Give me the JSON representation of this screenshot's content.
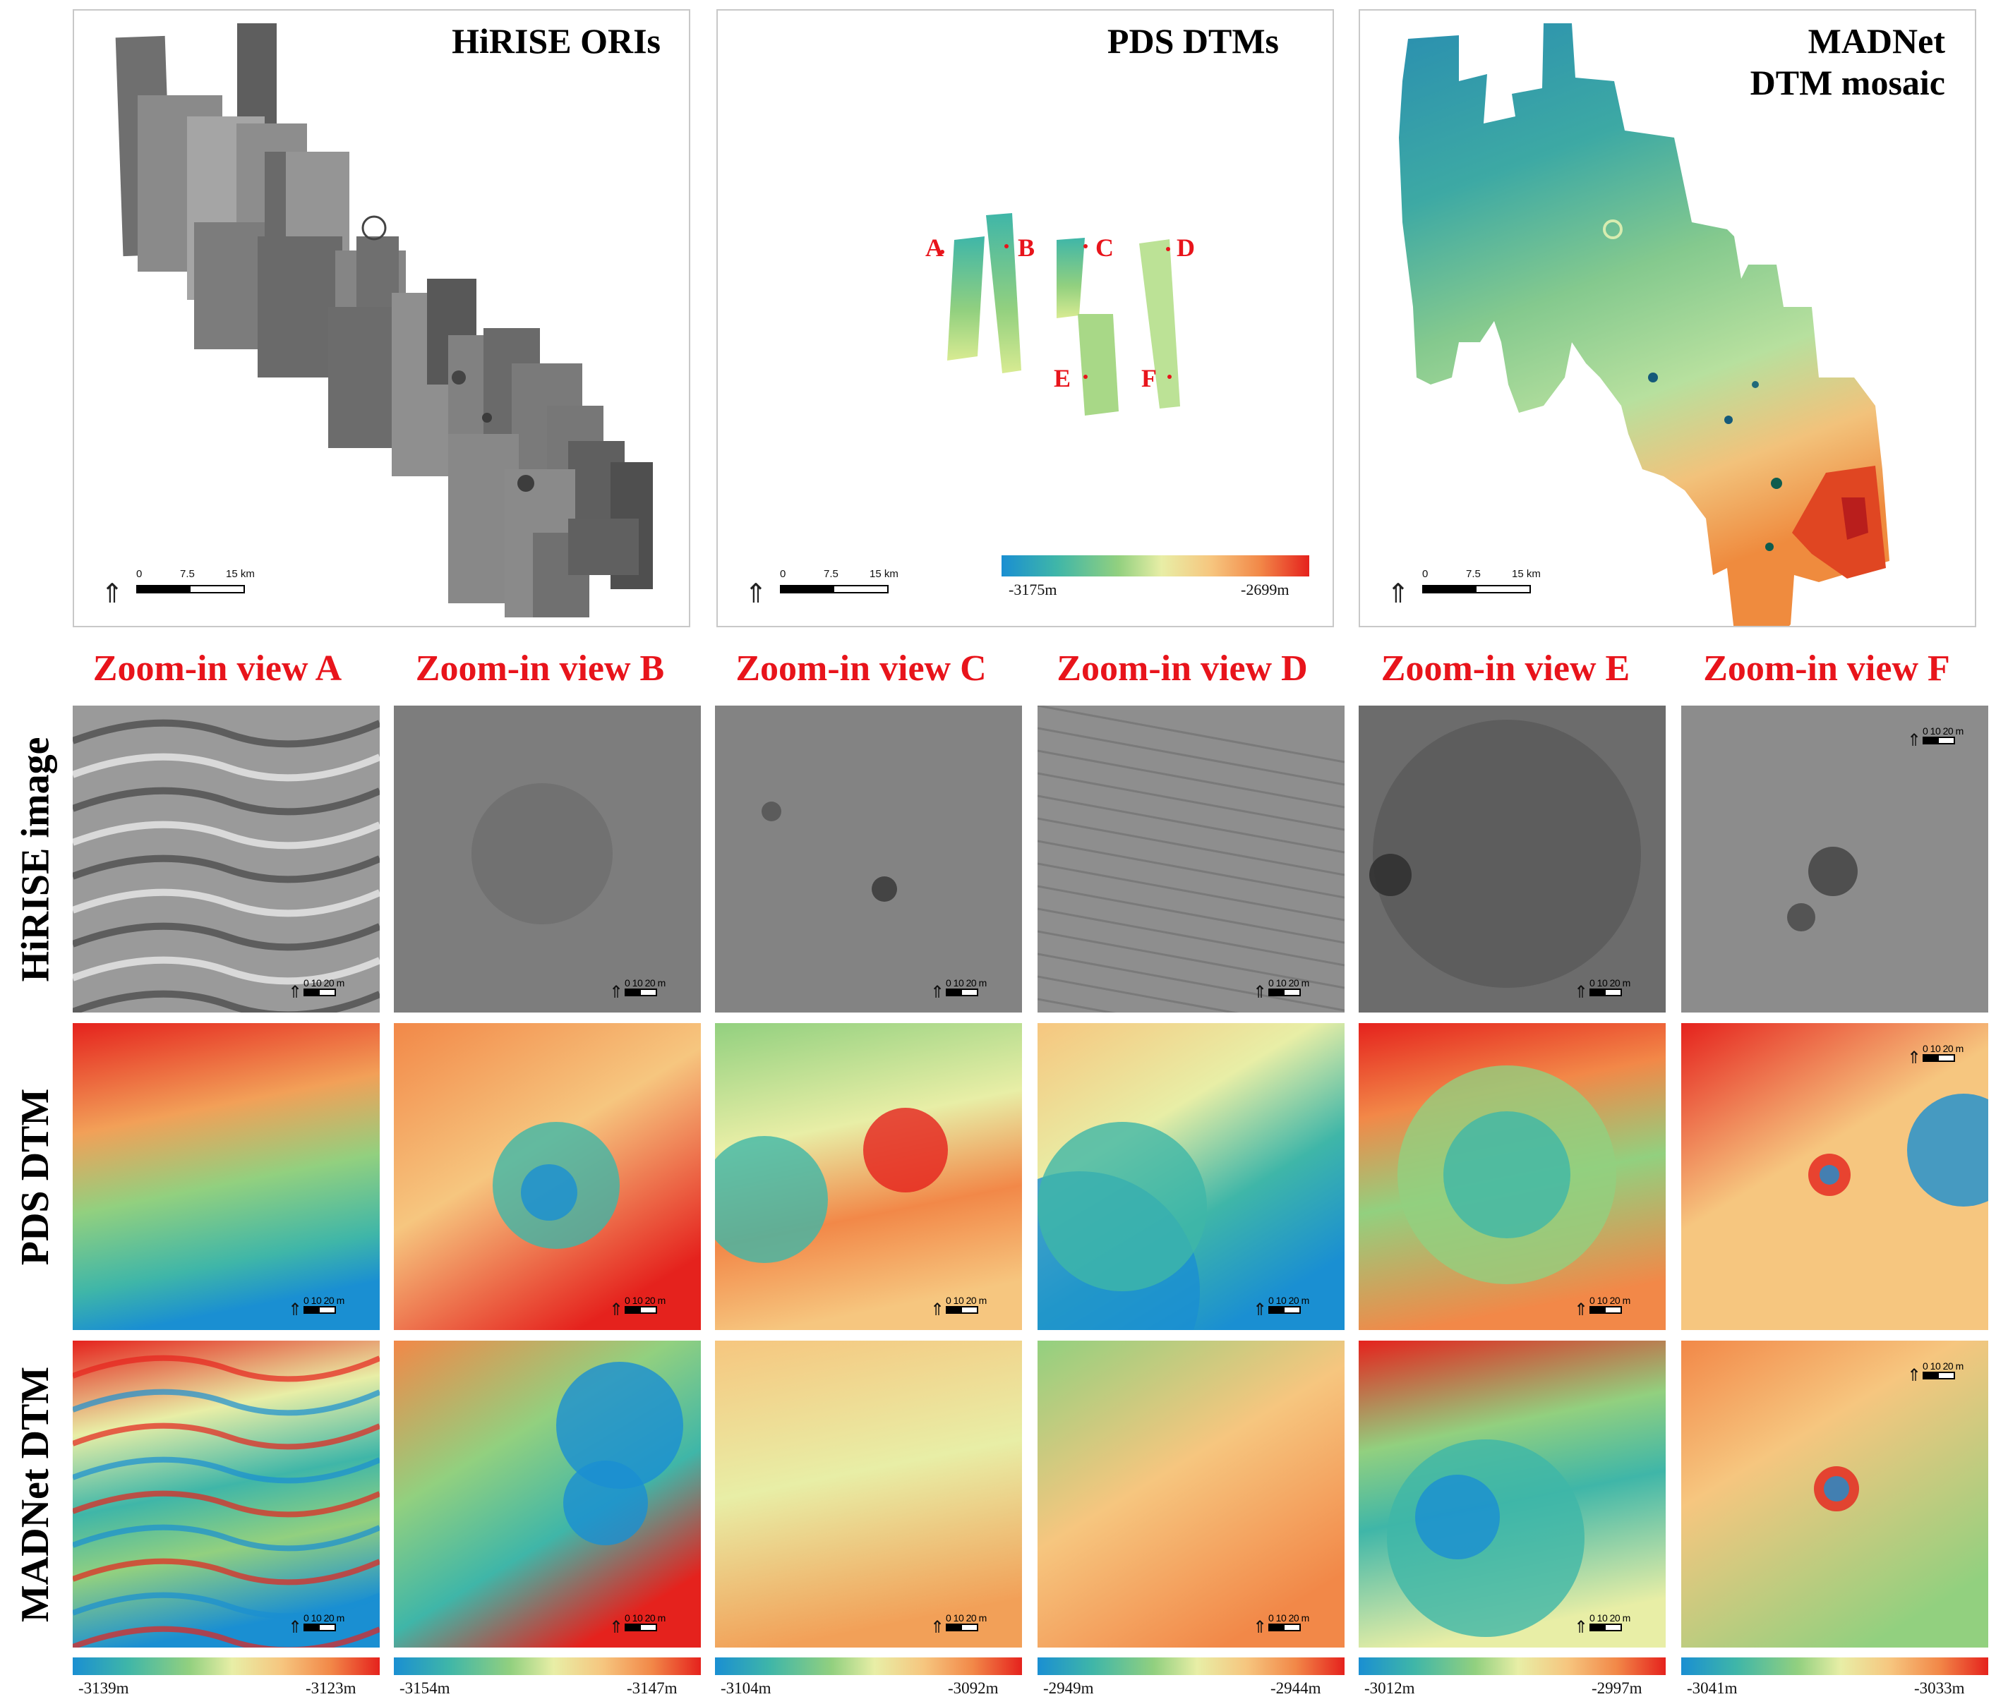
{
  "overview": {
    "orthos": {
      "title": "HiRISE ORIs"
    },
    "pds": {
      "title": "PDS DTMs",
      "locations": [
        "A",
        "B",
        "C",
        "D",
        "E",
        "F"
      ]
    },
    "madnet": {
      "title_line1": "MADNet",
      "title_line2": "DTM mosaic"
    },
    "scale": {
      "t0": "0",
      "t1": "7.5",
      "t2": "15 km"
    },
    "north_icon": "north-arrow-icon",
    "colorbar": {
      "min": "-3175m",
      "max": "-2699m"
    }
  },
  "columns": [
    "Zoom-in view A",
    "Zoom-in view B",
    "Zoom-in view C",
    "Zoom-in view D",
    "Zoom-in view E",
    "Zoom-in view F"
  ],
  "rows": [
    "HiRISE image",
    "PDS DTM",
    "MADNet DTM"
  ],
  "tile_scale": "0 10 20 m",
  "colorbars": [
    {
      "min": "-3139m",
      "max": "-3123m"
    },
    {
      "min": "-3154m",
      "max": "-3147m"
    },
    {
      "min": "-3104m",
      "max": "-3092m"
    },
    {
      "min": "-2949m",
      "max": "-2944m"
    },
    {
      "min": "-3012m",
      "max": "-2997m"
    },
    {
      "min": "-3041m",
      "max": "-3033m"
    }
  ],
  "colors": {
    "label_red": "#e8141b",
    "ramp": [
      "#1a8fd2",
      "#3fb6a8",
      "#92d07f",
      "#e8eea6",
      "#f6c67f",
      "#f28848",
      "#e5221d"
    ]
  }
}
